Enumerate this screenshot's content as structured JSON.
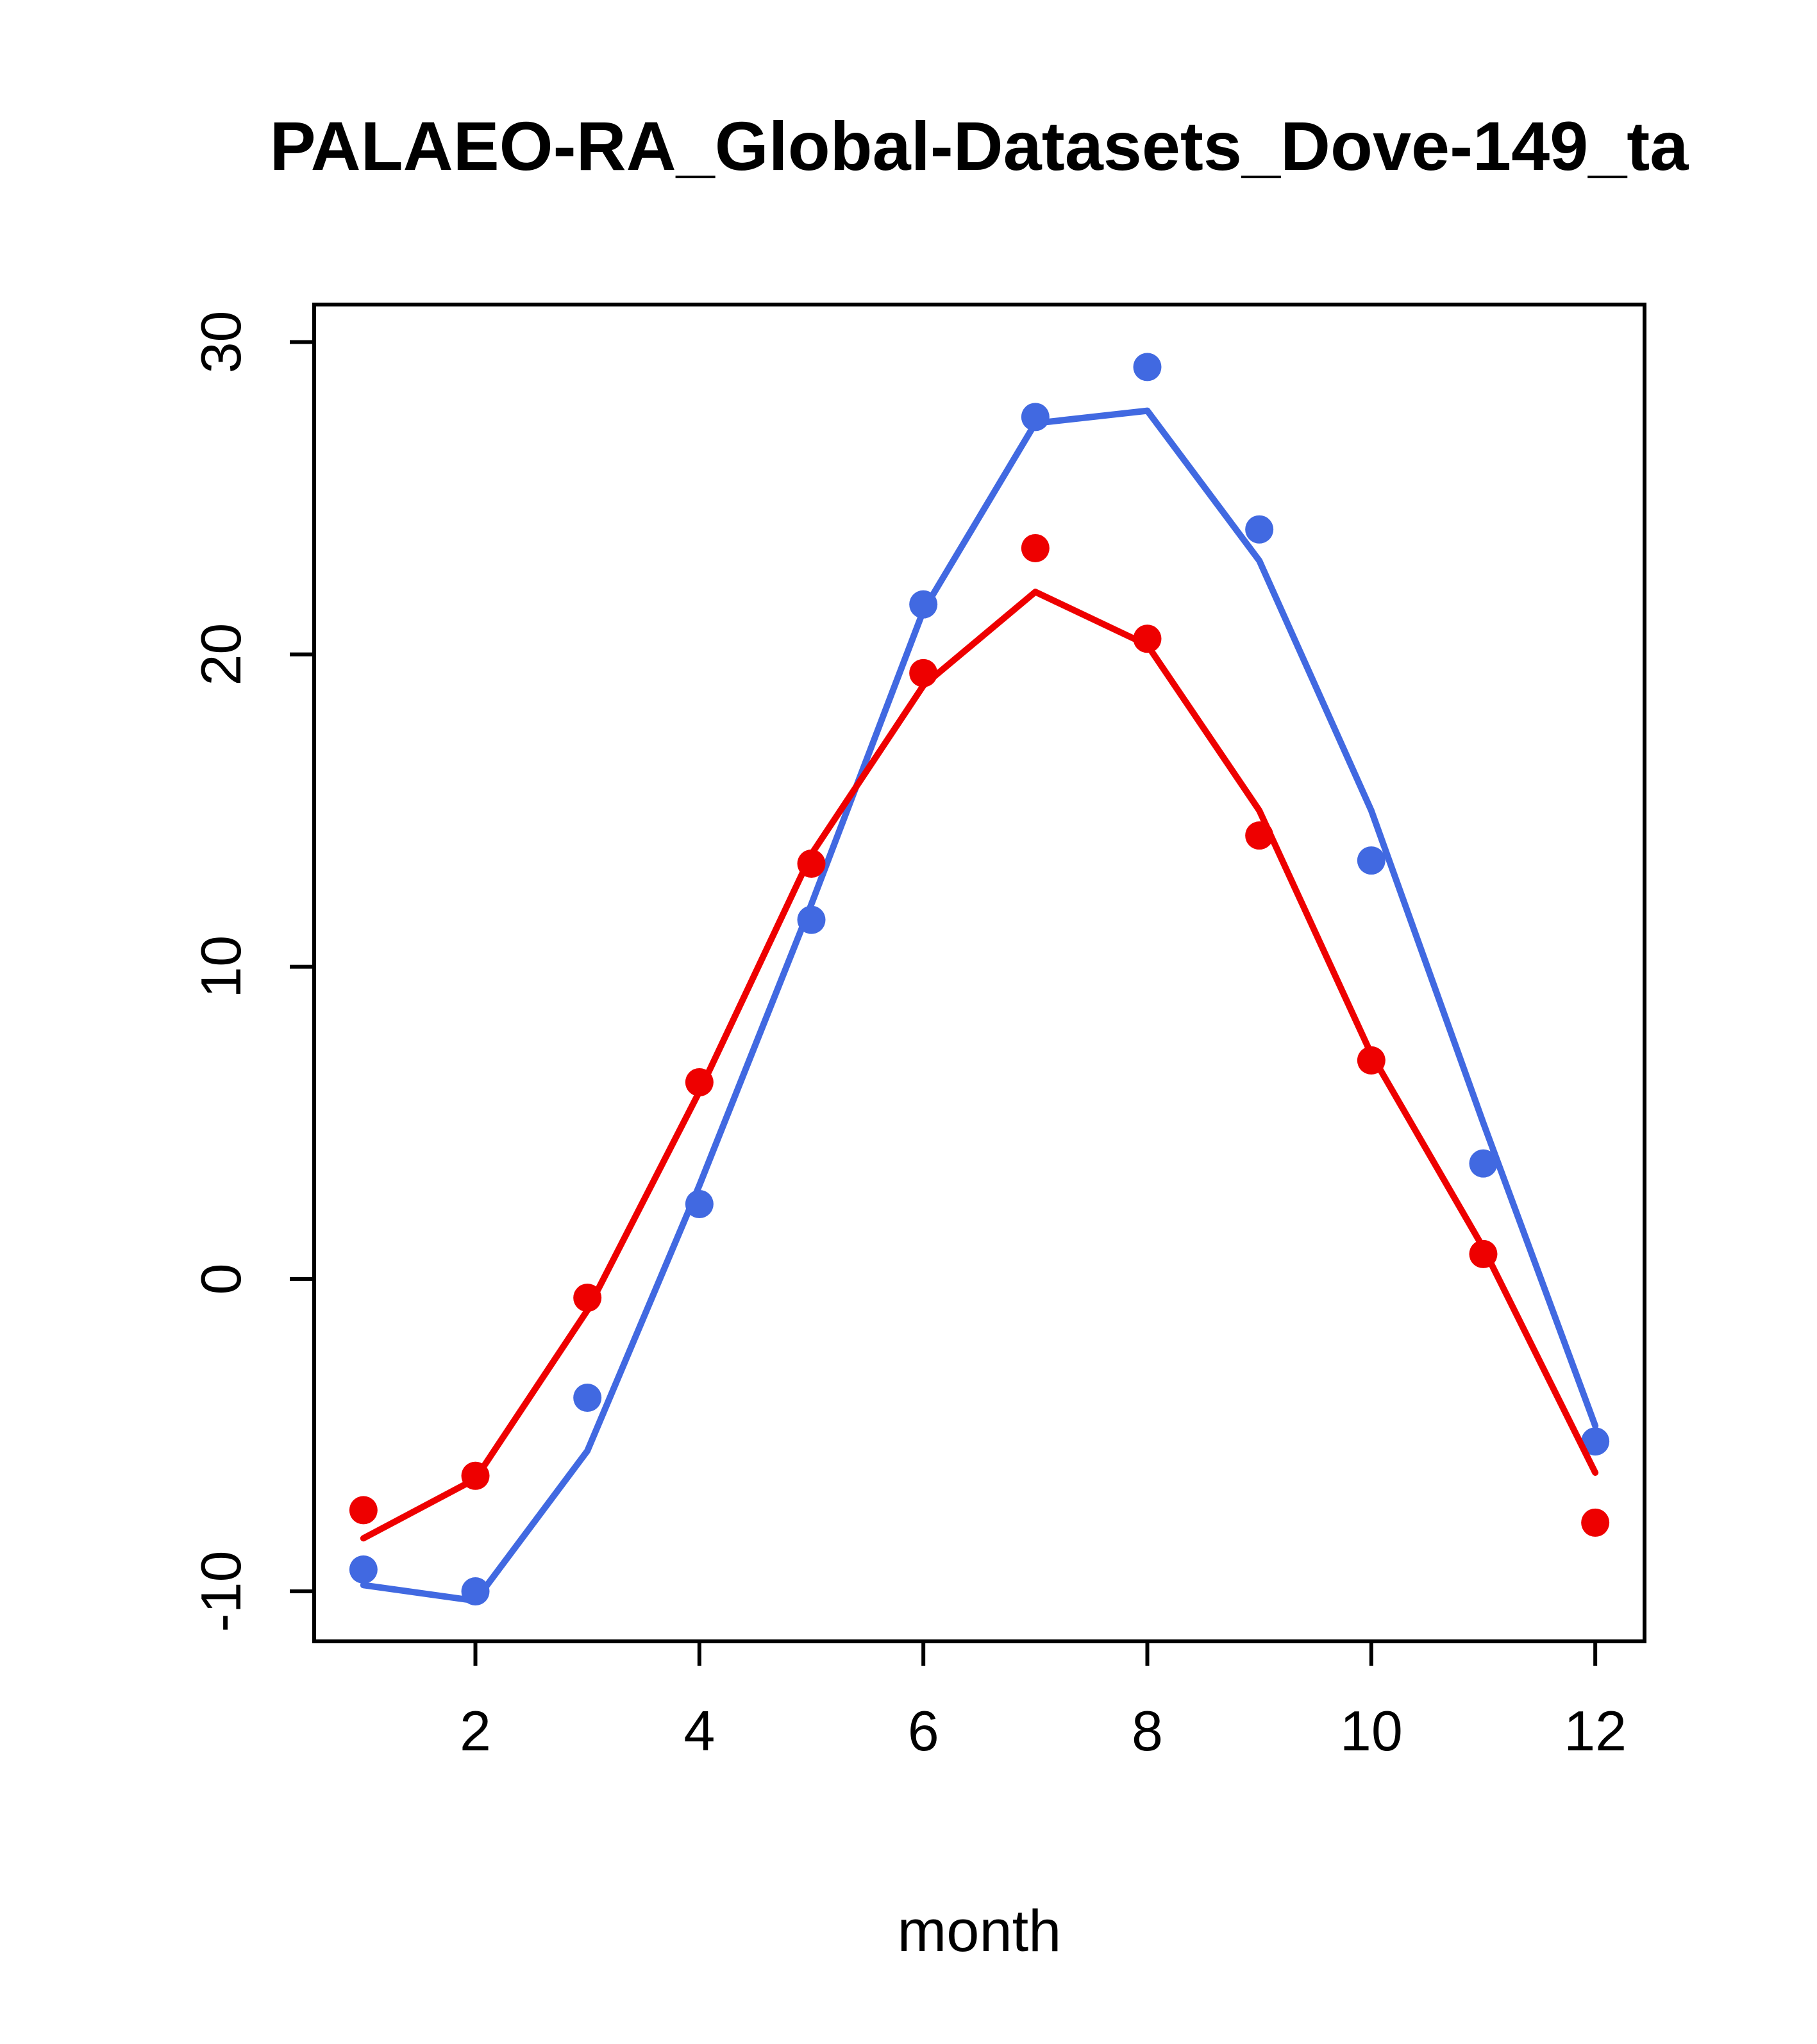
{
  "title": "PALAEO-RA_Global-Datasets_Dove-149_ta",
  "chart_data": {
    "type": "line",
    "title": "PALAEO-RA_Global-Datasets_Dove-149_ta",
    "xlabel": "month",
    "ylabel": "",
    "x": [
      1,
      2,
      3,
      4,
      5,
      6,
      7,
      8,
      9,
      10,
      11,
      12
    ],
    "xticks": [
      2,
      4,
      6,
      8,
      10,
      12
    ],
    "yticks": [
      -10,
      0,
      10,
      20,
      30
    ],
    "xlim": [
      0.56,
      12.44
    ],
    "ylim": [
      -11.6,
      31.2
    ],
    "grid": false,
    "legend": "none",
    "colors": {
      "blue": "#4169e1",
      "red": "#ee0000"
    },
    "series": [
      {
        "name": "blue-line",
        "style": "line",
        "color": "#4169e1",
        "values": [
          -9.8,
          -10.3,
          -5.5,
          3.0,
          12.0,
          21.4,
          27.4,
          27.8,
          23.0,
          15.0,
          5.0,
          -4.7
        ]
      },
      {
        "name": "blue-points",
        "style": "points",
        "color": "#4169e1",
        "values": [
          -9.3,
          -10.0,
          -3.8,
          2.4,
          11.5,
          21.6,
          27.6,
          29.2,
          24.0,
          13.4,
          3.7,
          -5.2
        ]
      },
      {
        "name": "red-line",
        "style": "line",
        "color": "#ee0000",
        "values": [
          -8.3,
          -6.4,
          -1.0,
          6.0,
          13.6,
          19.0,
          22.0,
          20.3,
          15.0,
          7.2,
          1.0,
          -6.2
        ]
      },
      {
        "name": "red-points",
        "style": "points",
        "color": "#ee0000",
        "values": [
          -7.4,
          -6.3,
          -0.6,
          6.3,
          13.3,
          19.4,
          23.4,
          20.5,
          14.2,
          7.0,
          0.8,
          -7.8
        ]
      }
    ]
  }
}
